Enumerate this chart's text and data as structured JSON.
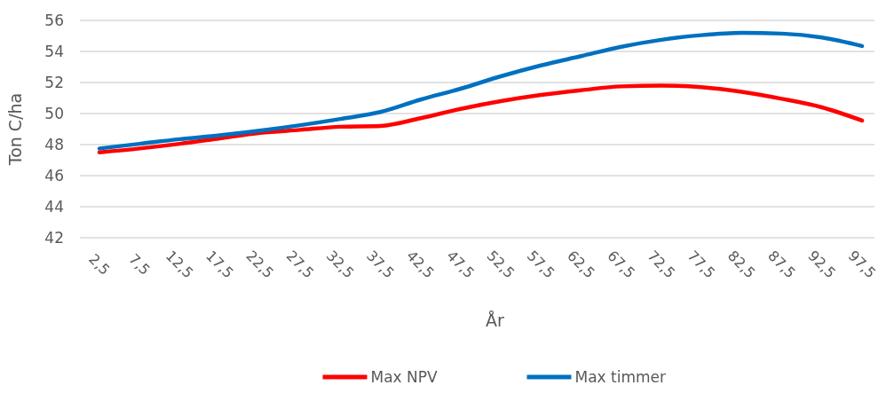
{
  "chart_data": {
    "type": "line",
    "xlabel": "År",
    "ylabel": "Ton C/ha",
    "categories": [
      "2,5",
      "7,5",
      "12,5",
      "17,5",
      "22,5",
      "27,5",
      "32,5",
      "37,5",
      "42,5",
      "47,5",
      "52,5",
      "57,5",
      "62,5",
      "67,5",
      "72,5",
      "77,5",
      "82,5",
      "87,5",
      "92,5",
      "97,5"
    ],
    "series": [
      {
        "name": "Max NPV",
        "color": "#ff0000",
        "values": [
          47.5,
          47.75,
          48.05,
          48.4,
          48.75,
          48.95,
          49.15,
          49.2,
          49.7,
          50.3,
          50.8,
          51.2,
          51.5,
          51.75,
          51.8,
          51.7,
          51.4,
          50.95,
          50.4,
          49.55
        ]
      },
      {
        "name": "Max timmer",
        "color": "#0070c0",
        "values": [
          47.75,
          48.05,
          48.35,
          48.6,
          48.9,
          49.25,
          49.65,
          50.1,
          50.9,
          51.6,
          52.4,
          53.1,
          53.7,
          54.3,
          54.75,
          55.05,
          55.2,
          55.15,
          54.9,
          54.35
        ]
      }
    ],
    "ylim": [
      42,
      56
    ],
    "yticks": [
      42,
      44,
      46,
      48,
      50,
      52,
      54,
      56
    ],
    "grid": "y",
    "legend": "bottom",
    "marker": "none",
    "line_style": "solid"
  }
}
